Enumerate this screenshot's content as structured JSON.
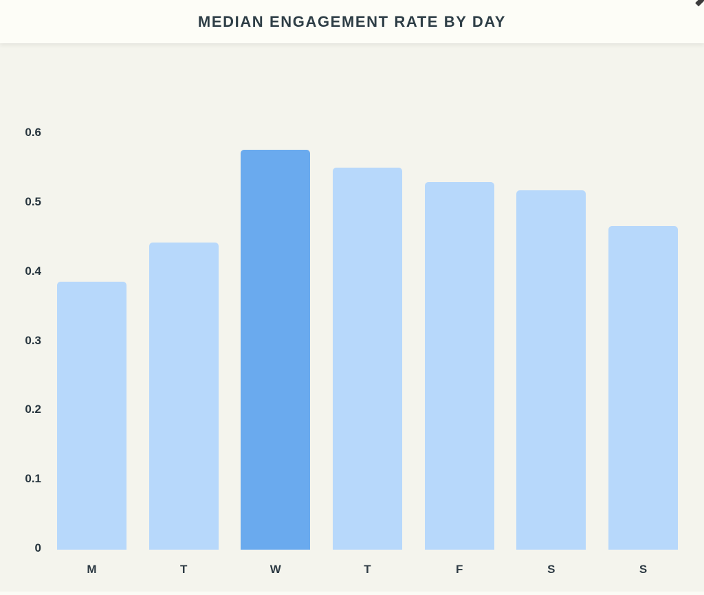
{
  "header": {
    "title": "MEDIAN ENGAGEMENT RATE BY DAY"
  },
  "chart_data": {
    "type": "bar",
    "title": "MEDIAN ENGAGEMENT RATE BY DAY",
    "categories": [
      "M",
      "T",
      "W",
      "T",
      "F",
      "S",
      "S"
    ],
    "values": [
      0.387,
      0.443,
      0.577,
      0.552,
      0.531,
      0.519,
      0.467
    ],
    "highlighted_index": 2,
    "highlighted_category": "W",
    "xlabel": "",
    "ylabel": "",
    "ylim": [
      0,
      0.6
    ],
    "yticks": [
      0,
      0.1,
      0.2,
      0.3,
      0.4,
      0.5,
      0.6
    ],
    "ytick_labels": [
      "0",
      "0.1",
      "0.2",
      "0.3",
      "0.4",
      "0.5",
      "0.6"
    ],
    "grid": false,
    "legend": false,
    "colors": {
      "bar": "#b7d8fb",
      "highlighted_bar": "#6aaaee"
    }
  },
  "colors": {
    "page_background": "#f4f4ed",
    "header_background": "#fdfdf7",
    "title_text": "#2e3e46",
    "axis_text": "#26343d"
  }
}
